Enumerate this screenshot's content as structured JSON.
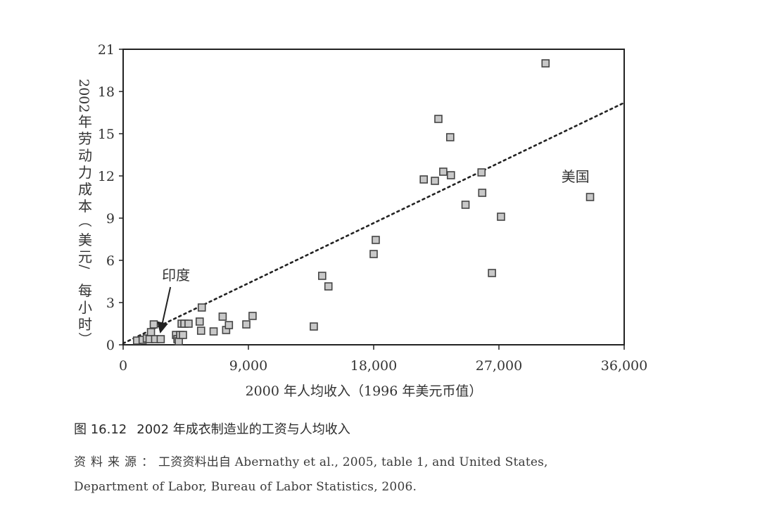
{
  "chart_data": {
    "type": "scatter",
    "title": "",
    "xlabel": "2000 年人均收入（1996 年美元币值）",
    "ylabel": "2002 年劳动力成本（美元 / 每小时）",
    "xlim": [
      0,
      36000
    ],
    "ylim": [
      0,
      21
    ],
    "x_ticks": [
      0,
      9000,
      18000,
      27000,
      36000
    ],
    "x_tick_labels": [
      "0",
      "9,000",
      "18,000",
      "27,000",
      "36,000"
    ],
    "y_ticks": [
      0,
      3,
      6,
      9,
      12,
      15,
      18,
      21
    ],
    "y_tick_labels": [
      "0",
      "3",
      "6",
      "9",
      "12",
      "15",
      "18",
      "21"
    ],
    "grid": false,
    "legend": null,
    "marker": "square",
    "marker_fill": "#c8c8c8",
    "marker_edge": "#444444",
    "series": [
      {
        "name": "countries",
        "points": [
          [
            1000,
            0.3
          ],
          [
            1400,
            0.35
          ],
          [
            1700,
            0.45
          ],
          [
            1900,
            0.4
          ],
          [
            2000,
            0.9
          ],
          [
            2200,
            1.45
          ],
          [
            2300,
            0.4
          ],
          [
            2700,
            0.4
          ],
          [
            3800,
            0.7
          ],
          [
            3900,
            0.4
          ],
          [
            4000,
            0.25
          ],
          [
            4100,
            0.7
          ],
          [
            4300,
            0.7
          ],
          [
            4200,
            1.5
          ],
          [
            4400,
            1.5
          ],
          [
            4700,
            1.5
          ],
          [
            5500,
            1.65
          ],
          [
            5600,
            1.0
          ],
          [
            5650,
            2.65
          ],
          [
            6500,
            0.95
          ],
          [
            7150,
            2.0
          ],
          [
            7400,
            1.05
          ],
          [
            7600,
            1.4
          ],
          [
            8850,
            1.45
          ],
          [
            9300,
            2.05
          ],
          [
            13700,
            1.3
          ],
          [
            14300,
            4.9
          ],
          [
            14750,
            4.15
          ],
          [
            18000,
            6.45
          ],
          [
            18150,
            7.45
          ],
          [
            21600,
            11.75
          ],
          [
            22400,
            11.65
          ],
          [
            22650,
            16.05
          ],
          [
            23000,
            12.3
          ],
          [
            23500,
            14.75
          ],
          [
            23550,
            12.05
          ],
          [
            24600,
            9.95
          ],
          [
            25750,
            12.25
          ],
          [
            25800,
            10.8
          ],
          [
            26500,
            5.1
          ],
          [
            27150,
            9.1
          ],
          [
            30350,
            20.0
          ],
          [
            33550,
            10.5
          ]
        ]
      }
    ],
    "trendline": {
      "style": "dotted",
      "from": [
        0,
        0.1
      ],
      "to": [
        36000,
        17.2
      ],
      "color": "#222222"
    },
    "annotations": [
      {
        "text": "印度",
        "label_at": [
          3800,
          4.6
        ],
        "arrow_to": [
          2700,
          1.0
        ]
      },
      {
        "text": "美国",
        "label_at": [
          32500,
          11.6
        ],
        "arrow_to": null
      }
    ]
  },
  "caption": {
    "figure_number": "图 16.12",
    "title": "2002 年成衣制造业的工资与人均收入"
  },
  "source": {
    "label": "资料来源：",
    "text_line1": "工资资料出自 Abernathy et al., 2005, table 1, and United States,",
    "text_line2": "Department of Labor, Bureau of Labor Statistics, 2006."
  }
}
